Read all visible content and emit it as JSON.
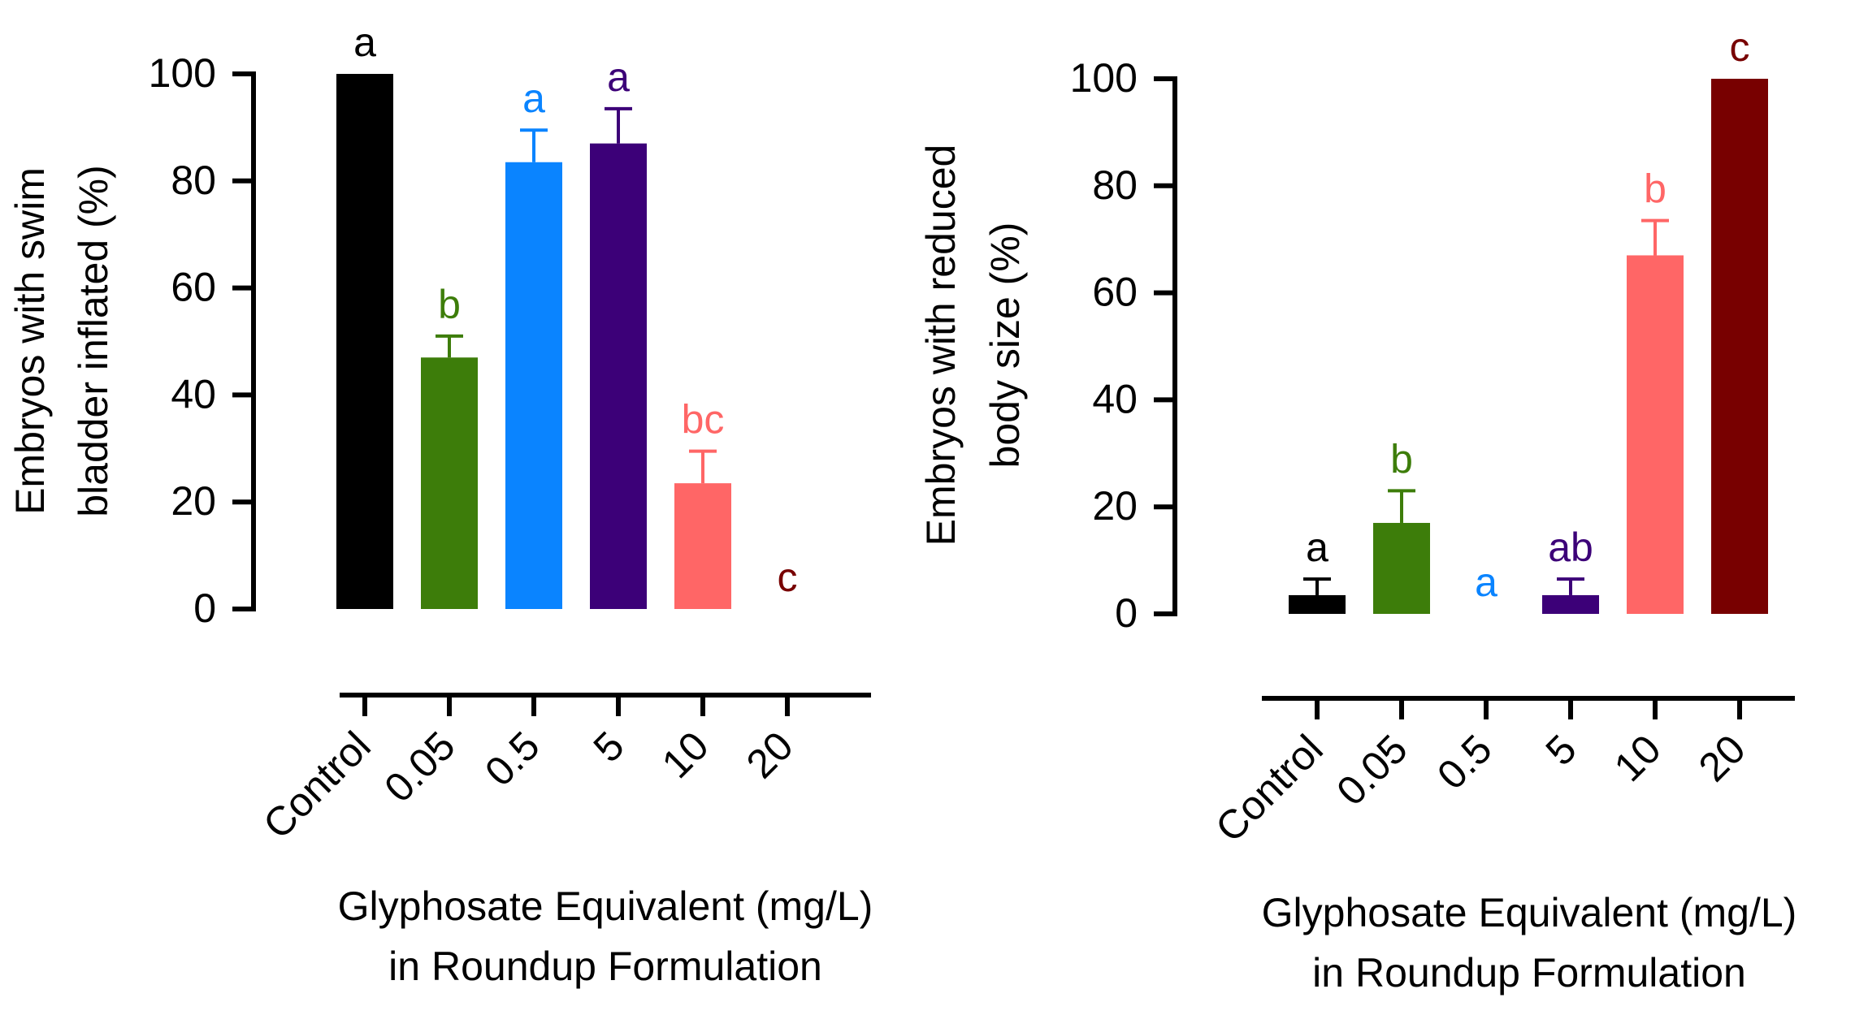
{
  "chart_data": [
    {
      "type": "bar",
      "ylabel_lines": [
        "Embryos with swim",
        "bladder inflated (%)"
      ],
      "xlabel_lines": [
        "Glyphosate Equivalent (mg/L)",
        "in Roundup Formulation"
      ],
      "ylim": [
        0,
        100
      ],
      "yticks": [
        "0",
        "20",
        "40",
        "60",
        "80",
        "100"
      ],
      "categories": [
        "Control",
        "0.05",
        "0.5",
        "5",
        "10",
        "20"
      ],
      "values": [
        100,
        47,
        83.5,
        87,
        23.5,
        0
      ],
      "errors": [
        0,
        4,
        6,
        6.5,
        6,
        0
      ],
      "letters": [
        "a",
        "b",
        "a",
        "a",
        "bc",
        "c"
      ],
      "colors": [
        "#000000",
        "#3d7d0a",
        "#0a84ff",
        "#3c0078",
        "#ff6666",
        "#780000"
      ]
    },
    {
      "type": "bar",
      "ylabel_lines": [
        "Embryos with reduced",
        "body size (%)"
      ],
      "xlabel_lines": [
        "Glyphosate Equivalent (mg/L)",
        "in Roundup Formulation"
      ],
      "ylim": [
        0,
        100
      ],
      "yticks": [
        "0",
        "20",
        "40",
        "60",
        "80",
        "100"
      ],
      "categories": [
        "Control",
        "0.05",
        "0.5",
        "5",
        "10",
        "20"
      ],
      "values": [
        3.5,
        17,
        0,
        3.5,
        67,
        100
      ],
      "errors": [
        3,
        6,
        0,
        3,
        6.5,
        0
      ],
      "letters": [
        "a",
        "b",
        "a",
        "ab",
        "b",
        "c"
      ],
      "colors": [
        "#000000",
        "#3d7d0a",
        "#0a84ff",
        "#3c0078",
        "#ff6666",
        "#780000"
      ]
    }
  ]
}
